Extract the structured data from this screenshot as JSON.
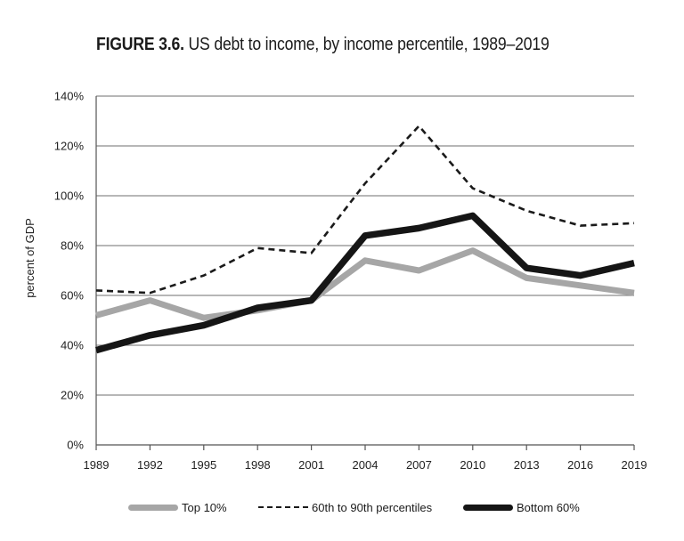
{
  "title": {
    "prefix": "FIGURE 3.6.",
    "text": "US debt to income, by income percentile, 1989–2019"
  },
  "colors": {
    "top10": "#a6a6a6",
    "mid": "#1a1a1a",
    "bottom60": "#151515",
    "grid": "#8c8c8c",
    "axis": "#555555"
  },
  "chart_data": {
    "type": "line",
    "title": "FIGURE 3.6. US debt to income, by income percentile, 1989–2019",
    "xlabel": "",
    "ylabel": "percent of GDP",
    "x": [
      "1989",
      "1992",
      "1995",
      "1998",
      "2001",
      "2004",
      "2007",
      "2010",
      "2013",
      "2016",
      "2019"
    ],
    "y_ticks": [
      "0%",
      "20%",
      "40%",
      "60%",
      "80%",
      "100%",
      "120%",
      "140%"
    ],
    "ylim": [
      0,
      140
    ],
    "grid": "horizontal",
    "legend_position": "bottom",
    "series": [
      {
        "name": "Top 10%",
        "style": "thick-gray",
        "values": [
          52,
          58,
          51,
          54,
          58,
          74,
          70,
          78,
          67,
          64,
          61
        ]
      },
      {
        "name": "60th to 90th percentiles",
        "style": "dashed-black",
        "values": [
          62,
          61,
          68,
          79,
          77,
          105,
          128,
          103,
          94,
          88,
          89
        ]
      },
      {
        "name": "Bottom 60%",
        "style": "thick-black",
        "values": [
          38,
          44,
          48,
          55,
          58,
          84,
          87,
          92,
          71,
          68,
          73
        ]
      }
    ]
  }
}
